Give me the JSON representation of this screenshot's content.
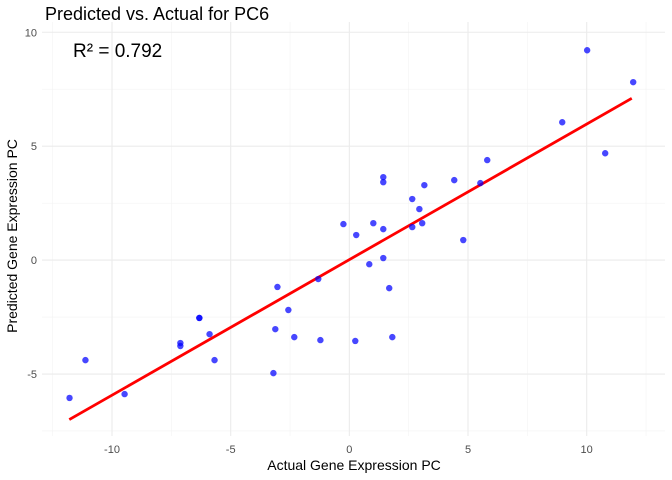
{
  "chart_data": {
    "type": "scatter",
    "title": "Predicted vs. Actual for PC6",
    "xlabel": "Actual Gene Expression PC",
    "ylabel": "Predicted Gene Expression PC",
    "xlim": [
      -12.95,
      13.3
    ],
    "ylim": [
      -7.72,
      10.45
    ],
    "xticks": [
      -10,
      -5,
      0,
      5,
      10
    ],
    "yticks": [
      -5,
      0,
      5,
      10
    ],
    "grid": true,
    "annotation": "R² = 0.792",
    "point_color": "#0000FF",
    "line_color": "#FF0000",
    "points": [
      [
        -11.79,
        -6.05
      ],
      [
        -11.12,
        -4.39
      ],
      [
        -9.47,
        -5.88
      ],
      [
        -7.12,
        -3.64
      ],
      [
        -7.12,
        -3.77
      ],
      [
        -6.32,
        -2.54
      ],
      [
        -6.32,
        -2.54
      ],
      [
        -5.89,
        -3.25
      ],
      [
        -5.68,
        -4.39
      ],
      [
        -3.2,
        -4.96
      ],
      [
        -3.12,
        -3.03
      ],
      [
        -3.03,
        -1.18
      ],
      [
        -2.57,
        -2.19
      ],
      [
        -2.32,
        -3.38
      ],
      [
        -1.31,
        -0.83
      ],
      [
        -1.22,
        -3.51
      ],
      [
        -0.25,
        1.58
      ],
      [
        0.25,
        -3.55
      ],
      [
        0.29,
        1.1
      ],
      [
        0.84,
        -0.18
      ],
      [
        1.01,
        1.62
      ],
      [
        1.43,
        3.64
      ],
      [
        1.43,
        3.42
      ],
      [
        1.43,
        1.36
      ],
      [
        1.43,
        0.09
      ],
      [
        1.68,
        -1.23
      ],
      [
        1.81,
        -3.38
      ],
      [
        2.65,
        2.68
      ],
      [
        2.65,
        1.45
      ],
      [
        2.95,
        2.24
      ],
      [
        3.07,
        1.62
      ],
      [
        3.16,
        3.29
      ],
      [
        4.42,
        3.51
      ],
      [
        4.8,
        0.88
      ],
      [
        5.52,
        3.38
      ],
      [
        5.81,
        4.39
      ],
      [
        8.97,
        6.05
      ],
      [
        10.02,
        9.21
      ],
      [
        10.78,
        4.69
      ],
      [
        11.96,
        7.81
      ]
    ],
    "fit_line": [
      [
        -11.8,
        -7.0
      ],
      [
        11.9,
        7.1
      ]
    ]
  }
}
